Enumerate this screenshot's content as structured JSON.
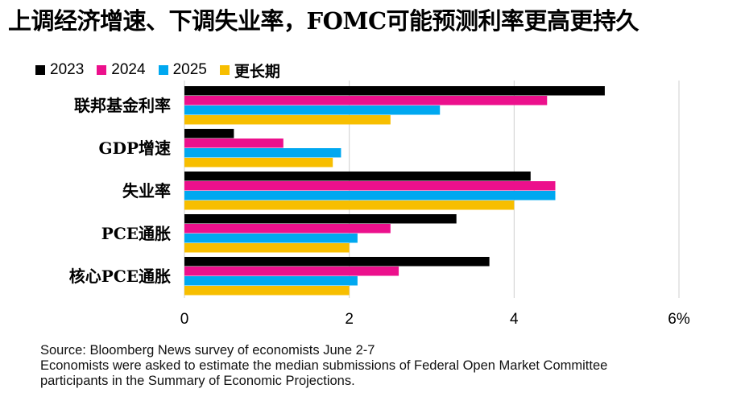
{
  "title": "上调经济增速、下调失业率，FOMC可能预测利率更高更持久",
  "chart_data": {
    "type": "bar",
    "orientation": "horizontal",
    "title": "上调经济增速、下调失业率，FOMC可能预测利率更高更持久",
    "categories": [
      "联邦基金利率",
      "GDP增速",
      "失业率",
      "PCE通胀",
      "核心PCE通胀"
    ],
    "series": [
      {
        "name": "2023",
        "color": "#000000",
        "values": [
          5.1,
          0.6,
          4.2,
          3.3,
          3.7
        ]
      },
      {
        "name": "2024",
        "color": "#ec108c",
        "values": [
          4.4,
          1.2,
          4.5,
          2.5,
          2.6
        ]
      },
      {
        "name": "2025",
        "color": "#00a8f0",
        "values": [
          3.1,
          1.9,
          4.5,
          2.1,
          2.1
        ]
      },
      {
        "name": "更长期",
        "color": "#f7be00",
        "values": [
          2.5,
          1.8,
          4.0,
          2.0,
          2.0
        ]
      }
    ],
    "xlim": [
      0,
      6
    ],
    "xticks": [
      {
        "value": 0,
        "label": "0"
      },
      {
        "value": 2,
        "label": "2"
      },
      {
        "value": 4,
        "label": "4"
      },
      {
        "value": 6,
        "label": "6%"
      }
    ],
    "xlabel": "",
    "ylabel": "",
    "grid": true,
    "legend_position": "top-left"
  },
  "footer": {
    "source": "Source: Bloomberg News survey of economists June 2-7",
    "note_line1": "Economists were asked to estimate the median submissions of Federal Open Market Committee",
    "note_line2": "participants in the Summary of Economic Projections."
  }
}
